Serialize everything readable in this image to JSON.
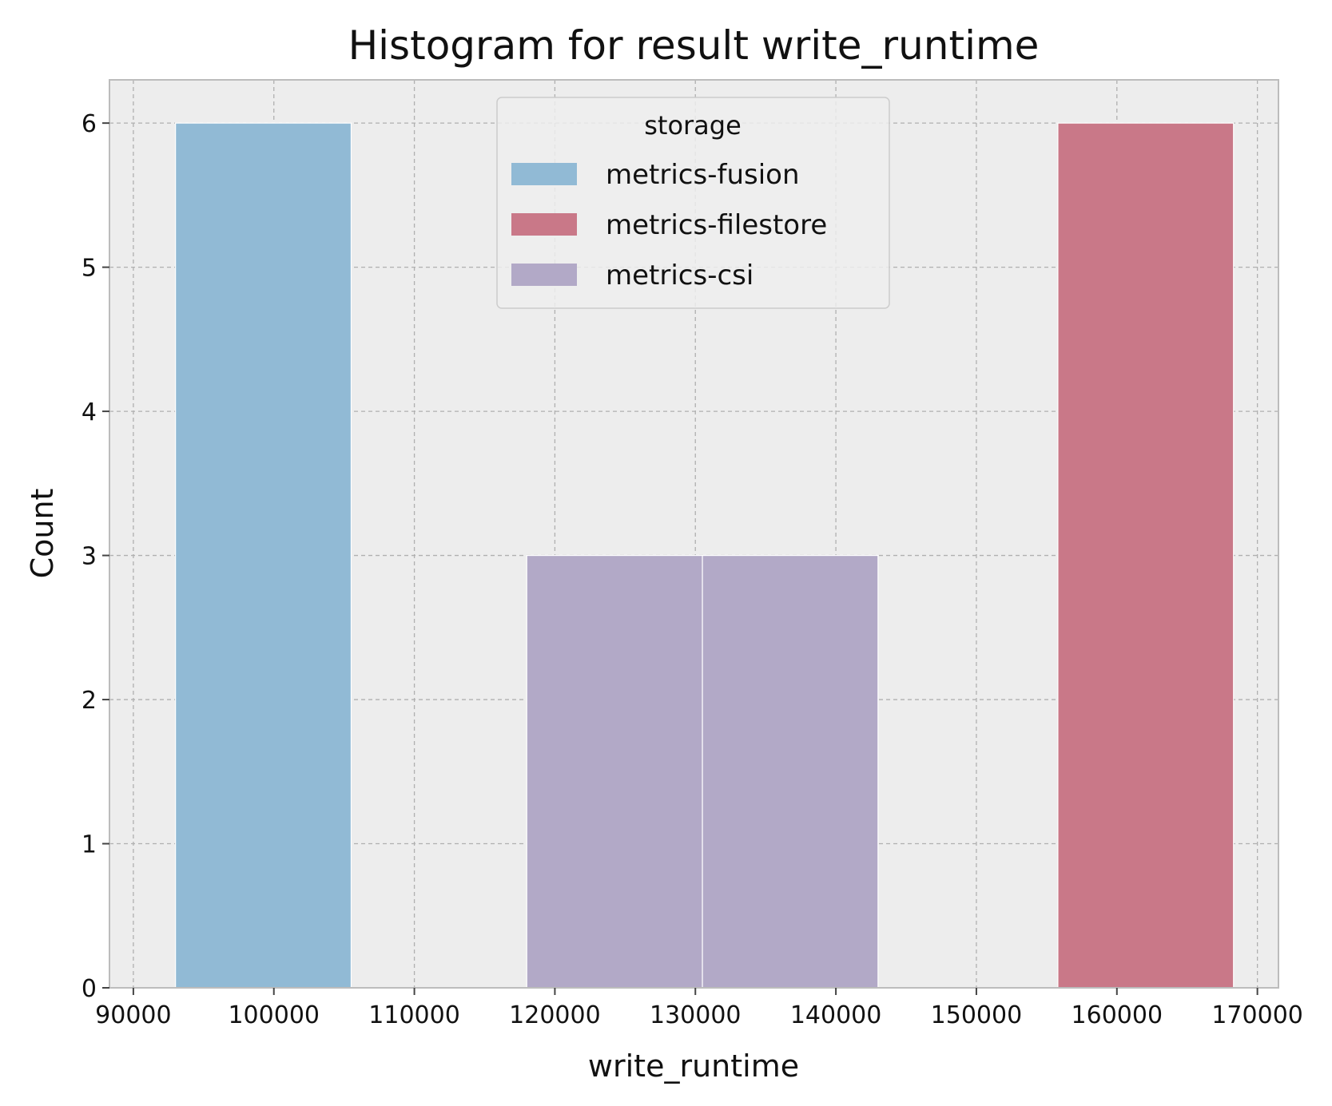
{
  "colors": {
    "plot_background": "#ededed",
    "grid": "#b0b0b0",
    "spine": "#bcbcbc",
    "bar_edge": "#ffffff"
  },
  "chart_data": {
    "type": "bar",
    "title": "Histogram for result write_runtime",
    "xlabel": "write_runtime",
    "ylabel": "Count",
    "xlim": [
      88300,
      171500
    ],
    "ylim": [
      0,
      6.3
    ],
    "xticks": [
      90000,
      100000,
      110000,
      120000,
      130000,
      140000,
      150000,
      160000,
      170000
    ],
    "yticks": [
      0,
      1,
      2,
      3,
      4,
      5,
      6
    ],
    "grid": true,
    "legend": {
      "title": "storage",
      "placement": "top-center"
    },
    "series": [
      {
        "name": "metrics-fusion",
        "color": "#91bad5",
        "bins": [
          {
            "x0": 93000,
            "x1": 105500,
            "count": 6
          }
        ]
      },
      {
        "name": "metrics-filestore",
        "color": "#c97888",
        "bins": [
          {
            "x0": 155800,
            "x1": 168300,
            "count": 6
          }
        ]
      },
      {
        "name": "metrics-csi",
        "color": "#b2a9c7",
        "bins": [
          {
            "x0": 118000,
            "x1": 130500,
            "count": 3
          },
          {
            "x0": 130500,
            "x1": 143000,
            "count": 3
          }
        ]
      }
    ]
  }
}
